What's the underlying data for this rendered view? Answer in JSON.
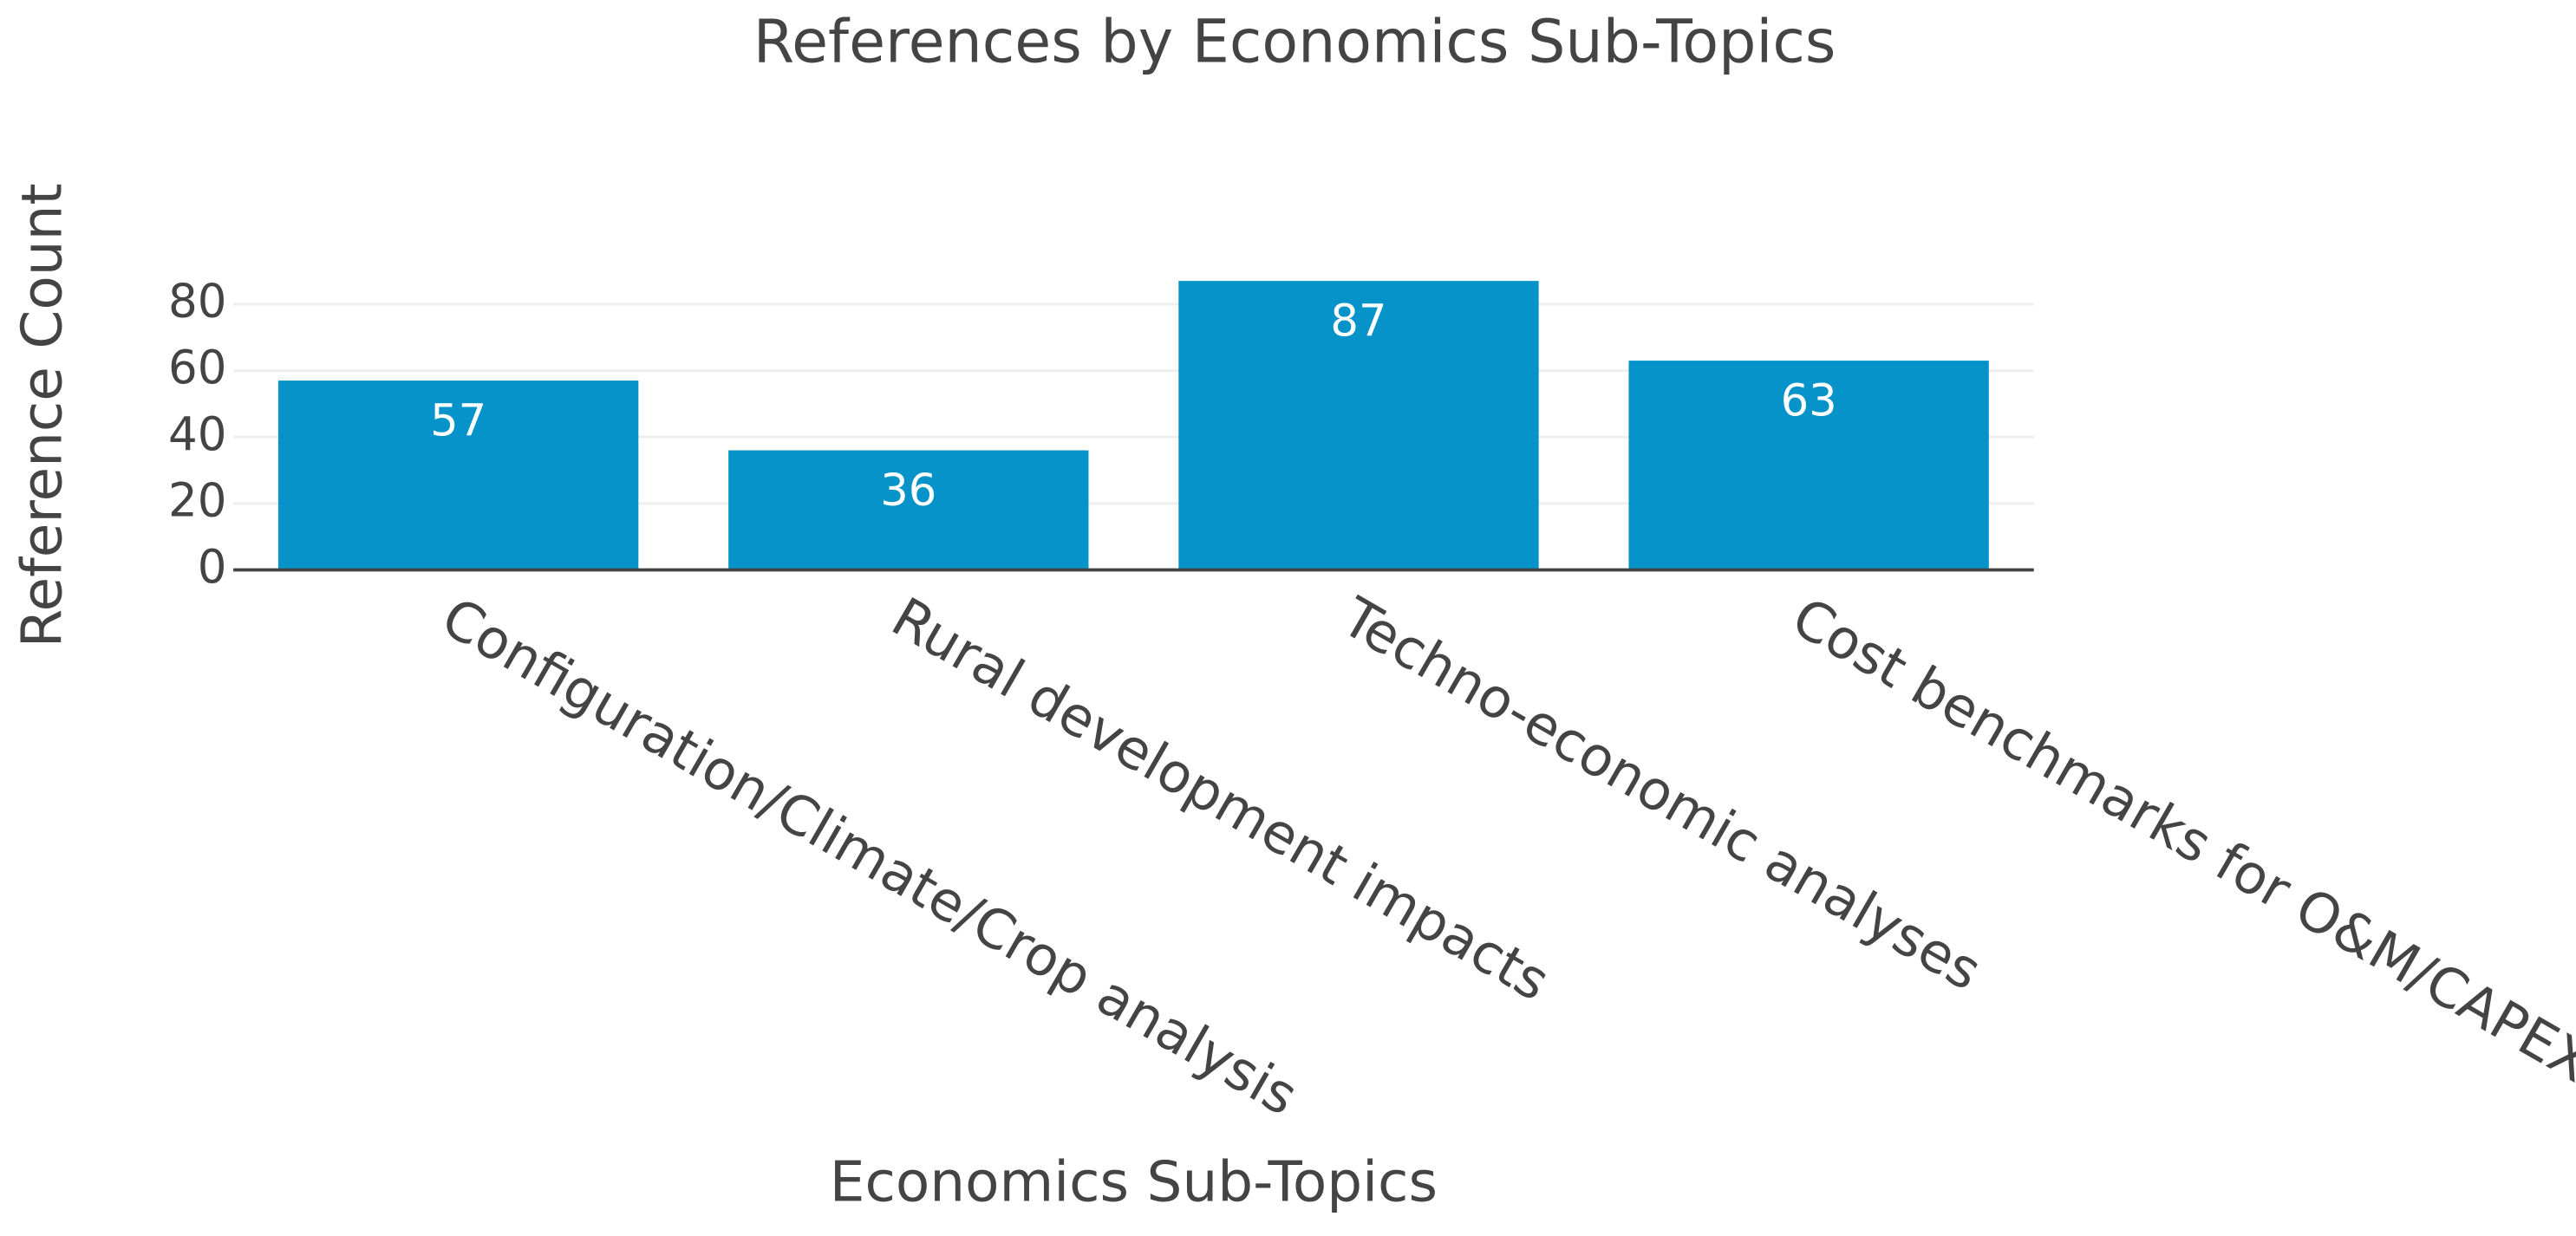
{
  "chart_data": {
    "type": "bar",
    "title": "References by Economics Sub-Topics",
    "x_label": "Economics Sub-Topics",
    "y_label": "Reference Count",
    "categories": [
      "Configuration/Climate/Crop analysis",
      "Rural development impacts",
      "Techno-economic analyses",
      "Cost benchmarks for O&M/CAPEX"
    ],
    "values": [
      57,
      36,
      87,
      63
    ],
    "color": "#0593c9",
    "ylim": [
      0,
      90
    ],
    "yticks": [
      0,
      20,
      40,
      60,
      80
    ],
    "grid": true,
    "show_value_labels": true
  }
}
